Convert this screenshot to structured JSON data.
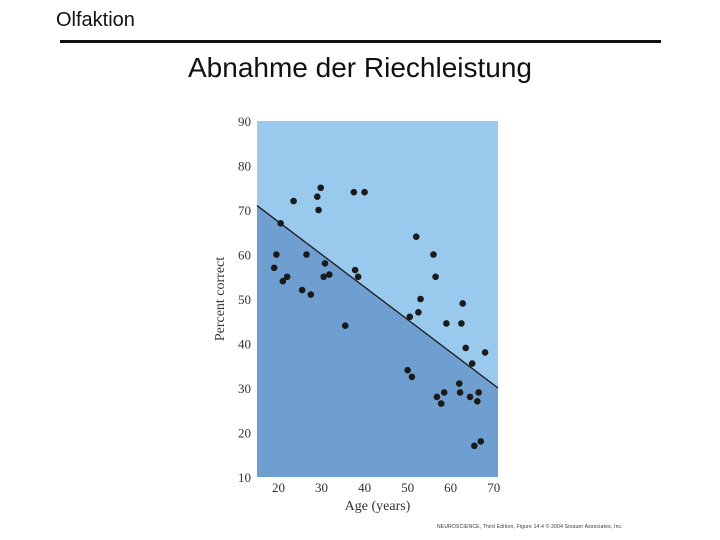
{
  "slide": {
    "label": "Olfaktion",
    "title": "Abnahme der Riechleistung",
    "credit": "NEUROSCIENCE, Third Edition, Figure 14.4 © 2004 Sinauer Associates, Inc."
  },
  "chart_data": {
    "type": "scatter",
    "xlabel": "Age (years)",
    "ylabel": "Percent correct",
    "xlim": [
      15,
      71
    ],
    "ylim": [
      10,
      90
    ],
    "xticks": [
      20,
      30,
      40,
      50,
      60,
      70
    ],
    "yticks": [
      10,
      20,
      30,
      40,
      50,
      60,
      70,
      80,
      90
    ],
    "grid": false,
    "colors": {
      "upper_region": "#99c9ed",
      "lower_region": "#6f9fd0",
      "points": "#1a1a1a",
      "trend_line": "#1a1a1a",
      "text": "#333333"
    },
    "trend_line": {
      "x": [
        15,
        71
      ],
      "y": [
        71,
        30
      ]
    },
    "points": {
      "x": [
        19.0,
        19.5,
        20.5,
        21.0,
        22.0,
        23.5,
        25.5,
        26.5,
        27.5,
        29.0,
        29.3,
        29.8,
        30.5,
        30.8,
        31.8,
        35.5,
        37.5,
        37.8,
        38.5,
        40.0,
        50.0,
        50.5,
        51.0,
        52.0,
        52.5,
        53.0,
        56.0,
        56.5,
        56.8,
        57.8,
        58.5,
        59.0,
        62.0,
        62.2,
        62.5,
        62.8,
        63.5,
        64.5,
        65.0,
        65.5,
        66.2,
        66.5,
        67.0,
        68.0
      ],
      "y": [
        57.0,
        60.0,
        67.0,
        54.0,
        55.0,
        72.0,
        52.0,
        60.0,
        51.0,
        73.0,
        70.0,
        75.0,
        55.0,
        58.0,
        55.5,
        44.0,
        74.0,
        56.5,
        55.0,
        74.0,
        34.0,
        46.0,
        32.5,
        64.0,
        47.0,
        50.0,
        60.0,
        55.0,
        28.0,
        26.5,
        29.0,
        44.5,
        31.0,
        29.0,
        44.5,
        49.0,
        39.0,
        28.0,
        35.5,
        17.0,
        27.0,
        29.0,
        18.0,
        38.0
      ]
    }
  }
}
